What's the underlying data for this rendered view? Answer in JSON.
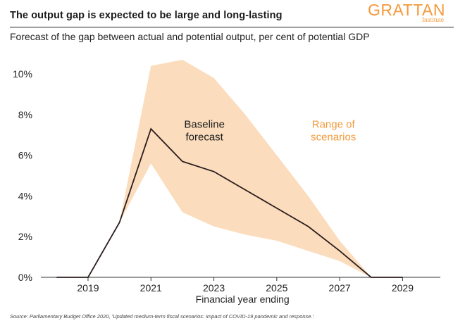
{
  "header": {
    "title": "The output gap is expected to be large and long-lasting",
    "subtitle": "Forecast of the gap between actual and potential output, per cent of potential GDP"
  },
  "logo": {
    "name": "GRATTAN",
    "sub": "Institute"
  },
  "source": "Source: Parliamentary Budget Office 2020, 'Updated medium-term fiscal scenarios: impact of COVID-19 pandemic and response.'.",
  "colors": {
    "band": "#fbdcbc",
    "line": "#2b1d1d",
    "axis": "#333333",
    "accent": "#f39a3c"
  },
  "chart_data": {
    "type": "area",
    "title": "The output gap is expected to be large and long-lasting",
    "subtitle": "Forecast of the gap between actual and potential output, per cent of potential GDP",
    "xlabel": "Financial year ending",
    "ylabel": "",
    "xlim": [
      2017.5,
      2030.2
    ],
    "ylim": [
      0,
      10.8
    ],
    "x_ticks": [
      2019,
      2021,
      2023,
      2025,
      2027,
      2029
    ],
    "x_tick_labels": [
      "2019",
      "2021",
      "2023",
      "2025",
      "2027",
      "2029"
    ],
    "y_ticks": [
      0,
      2,
      4,
      6,
      8,
      10
    ],
    "y_tick_labels": [
      "0%",
      "2%",
      "4%",
      "6%",
      "8%",
      "10%"
    ],
    "series": [
      {
        "name": "Baseline forecast",
        "kind": "line",
        "x": [
          2018,
          2019,
          2020,
          2021,
          2022,
          2023,
          2024,
          2025,
          2026,
          2027,
          2028,
          2029
        ],
        "values": [
          0,
          0,
          2.7,
          7.3,
          5.7,
          5.2,
          4.3,
          3.4,
          2.5,
          1.3,
          0,
          0
        ]
      },
      {
        "name": "Range of scenarios",
        "kind": "band",
        "x": [
          2020,
          2021,
          2022,
          2023,
          2024,
          2025,
          2026,
          2027,
          2028
        ],
        "upper": [
          2.7,
          10.4,
          10.7,
          9.8,
          8.0,
          6.0,
          4.0,
          1.8,
          0
        ],
        "lower": [
          2.7,
          5.6,
          3.2,
          2.5,
          2.1,
          1.8,
          1.3,
          0.8,
          0
        ]
      }
    ],
    "annotations": [
      {
        "text_lines": [
          "Baseline",
          "forecast"
        ],
        "x": 2022.7,
        "y": 7.35,
        "color": "#1a1a1a"
      },
      {
        "text_lines": [
          "Range of",
          "scenarios"
        ],
        "x": 2026.8,
        "y": 7.35,
        "color": "#f39a3c"
      }
    ],
    "grid": false,
    "legend": "none"
  }
}
